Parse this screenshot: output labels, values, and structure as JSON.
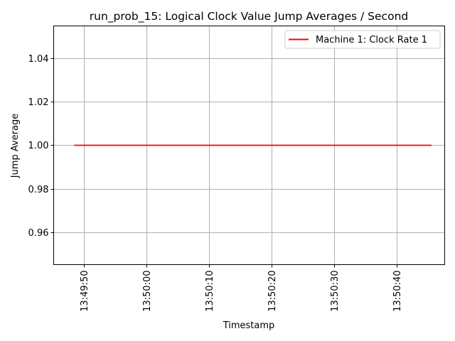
{
  "chart_data": {
    "type": "line",
    "title": "run_prob_15: Logical Clock Value Jump Averages / Second",
    "xlabel": "Timestamp",
    "ylabel": "Jump Average",
    "x_ticks": [
      "13:49:50",
      "13:50:00",
      "13:50:10",
      "13:50:20",
      "13:50:30",
      "13:50:40"
    ],
    "x_tick_seconds": [
      50,
      60,
      70,
      80,
      90,
      100
    ],
    "xlim_seconds": [
      45.2,
      107.7
    ],
    "ylim": [
      0.945,
      1.055
    ],
    "y_ticks": [
      0.96,
      0.98,
      1.0,
      1.02,
      1.04
    ],
    "y_tick_labels": [
      "0.96",
      "0.98",
      "1.00",
      "1.02",
      "1.04"
    ],
    "grid": true,
    "legend_position": "upper right",
    "series": [
      {
        "name": "Machine 1: Clock Rate 1",
        "color": "#ff0000",
        "x_seconds": [
          48.5,
          105.6
        ],
        "values": [
          1.0,
          1.0
        ]
      }
    ]
  }
}
